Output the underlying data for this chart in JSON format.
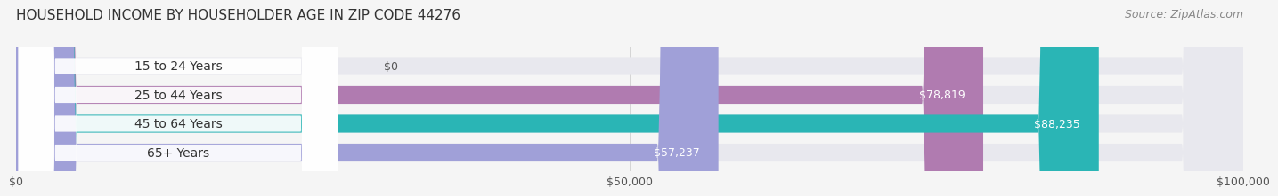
{
  "title": "HOUSEHOLD INCOME BY HOUSEHOLDER AGE IN ZIP CODE 44276",
  "source": "Source: ZipAtlas.com",
  "categories": [
    "15 to 24 Years",
    "25 to 44 Years",
    "45 to 64 Years",
    "65+ Years"
  ],
  "values": [
    0,
    78819,
    88235,
    57237
  ],
  "bar_colors": [
    "#a8c8e8",
    "#b07bb0",
    "#2ab5b5",
    "#a0a0d8"
  ],
  "value_labels": [
    "$0",
    "$78,819",
    "$88,235",
    "$57,237"
  ],
  "xlim": [
    0,
    100000
  ],
  "xticks": [
    0,
    50000,
    100000
  ],
  "xtick_labels": [
    "$0",
    "$50,000",
    "$100,000"
  ],
  "background_color": "#f5f5f5",
  "bar_background_color": "#e8e8ee",
  "title_fontsize": 11,
  "source_fontsize": 9,
  "label_fontsize": 10,
  "value_fontsize": 9,
  "bar_height": 0.62
}
